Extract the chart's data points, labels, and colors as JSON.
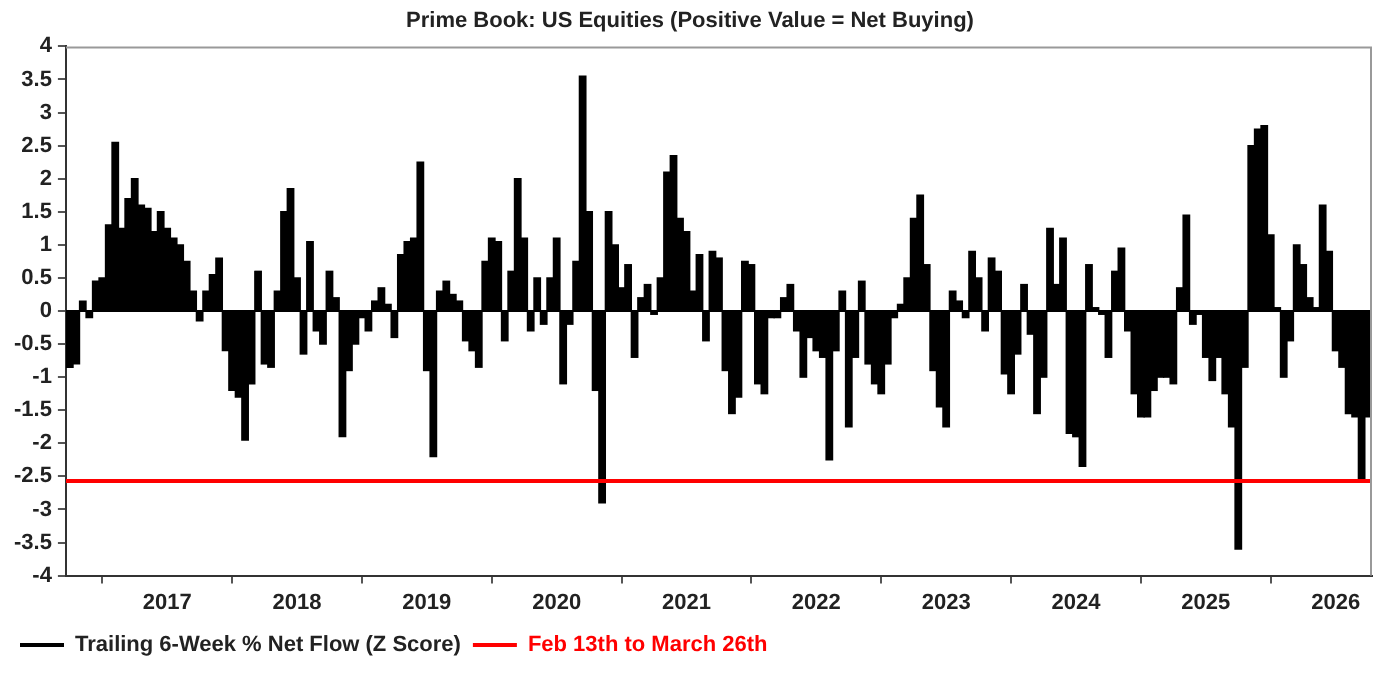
{
  "chart_data": {
    "type": "bar",
    "title": "Prime Book: US Equities (Positive Value = Net Buying)",
    "xlim": [
      2016.22,
      2026.28
    ],
    "xticks": [
      2017,
      2018,
      2019,
      2020,
      2021,
      2022,
      2023,
      2024,
      2025,
      2026
    ],
    "ylim": [
      -4,
      4
    ],
    "yticks": [
      -4,
      -3.5,
      -3,
      -2.5,
      -2,
      -1.5,
      -1,
      -0.5,
      0,
      0.5,
      1,
      1.5,
      2,
      2.5,
      3,
      3.5,
      4
    ],
    "grid": false,
    "legend": "bottom",
    "series": [
      {
        "name": "Trailing 6-Week % Net Flow (Z Score)",
        "color": "#000000",
        "x": [
          2016.25,
          2016.3,
          2016.35,
          2016.4,
          2016.45,
          2016.5,
          2016.55,
          2016.6,
          2016.65,
          2016.7,
          2016.75,
          2016.8,
          2016.85,
          2016.9,
          2016.95,
          2017,
          2017.05,
          2017.1,
          2017.15,
          2017.2,
          2017.25,
          2017.3,
          2017.35,
          2017.4,
          2017.45,
          2017.5,
          2017.55,
          2017.6,
          2017.65,
          2017.7,
          2017.75,
          2017.8,
          2017.85,
          2017.9,
          2017.95,
          2018,
          2018.05,
          2018.1,
          2018.15,
          2018.2,
          2018.25,
          2018.3,
          2018.35,
          2018.4,
          2018.45,
          2018.5,
          2018.55,
          2018.6,
          2018.65,
          2018.7,
          2018.75,
          2018.8,
          2018.85,
          2018.9,
          2018.95,
          2019,
          2019.05,
          2019.1,
          2019.15,
          2019.2,
          2019.25,
          2019.3,
          2019.35,
          2019.4,
          2019.45,
          2019.5,
          2019.55,
          2019.6,
          2019.65,
          2019.7,
          2019.75,
          2019.8,
          2019.85,
          2019.9,
          2019.95,
          2020,
          2020.05,
          2020.1,
          2020.15,
          2020.2,
          2020.25,
          2020.3,
          2020.35,
          2020.4,
          2020.45,
          2020.5,
          2020.55,
          2020.6,
          2020.65,
          2020.7,
          2020.75,
          2020.8,
          2020.85,
          2020.9,
          2020.95,
          2021,
          2021.05,
          2021.1,
          2021.15,
          2021.2,
          2021.25,
          2021.3,
          2021.35,
          2021.4,
          2021.45,
          2021.5,
          2021.55,
          2021.6,
          2021.65,
          2021.7,
          2021.75,
          2021.8,
          2021.85,
          2021.9,
          2021.95,
          2022,
          2022.05,
          2022.1,
          2022.15,
          2022.2,
          2022.25,
          2022.3,
          2022.35,
          2022.4,
          2022.45,
          2022.5,
          2022.55,
          2022.6,
          2022.65,
          2022.7,
          2022.75,
          2022.8,
          2022.85,
          2022.9,
          2022.95,
          2023,
          2023.05,
          2023.1,
          2023.15,
          2023.2,
          2023.25,
          2023.3,
          2023.35,
          2023.4,
          2023.45,
          2023.5,
          2023.55,
          2023.6,
          2023.65,
          2023.7,
          2023.75,
          2023.8,
          2023.85,
          2023.9,
          2023.95,
          2024,
          2024.05,
          2024.1,
          2024.15,
          2024.2,
          2024.25,
          2024.3,
          2024.35,
          2024.4,
          2024.45,
          2024.5,
          2024.55,
          2024.6,
          2024.65,
          2024.7,
          2024.75,
          2024.8,
          2024.85,
          2024.9,
          2024.95,
          2025,
          2025.05,
          2025.1,
          2025.15,
          2025.2,
          2025.25,
          2025.3,
          2025.35,
          2025.4,
          2025.45,
          2025.5,
          2025.55,
          2025.6,
          2025.65,
          2025.7,
          2025.75,
          2025.8,
          2025.85,
          2025.9,
          2025.95,
          2026,
          2026.05,
          2026.1,
          2026.15,
          2026.2,
          2026.25
        ],
        "values": [
          -0.85,
          -0.8,
          0.15,
          -0.1,
          0.45,
          0.5,
          1.3,
          2.55,
          1.25,
          1.7,
          2.0,
          1.6,
          1.55,
          1.2,
          1.5,
          1.25,
          1.1,
          1.0,
          0.75,
          0.3,
          -0.15,
          0.3,
          0.55,
          0.8,
          -0.6,
          -1.2,
          -1.3,
          -1.95,
          -1.1,
          0.6,
          -0.8,
          -0.85,
          0.3,
          1.5,
          1.85,
          0.5,
          -0.65,
          1.05,
          -0.3,
          -0.5,
          0.6,
          0.2,
          -1.9,
          -0.9,
          -0.5,
          -0.1,
          -0.3,
          0.15,
          0.35,
          0.1,
          -0.4,
          0.85,
          1.05,
          1.1,
          2.25,
          -0.9,
          -2.2,
          0.3,
          0.45,
          0.25,
          0.15,
          -0.45,
          -0.6,
          -0.85,
          0.75,
          1.1,
          1.05,
          -0.45,
          0.6,
          2.0,
          1.1,
          -0.3,
          0.5,
          -0.2,
          0.5,
          1.1,
          -1.1,
          -0.2,
          0.75,
          3.55,
          1.5,
          -1.2,
          -2.9,
          1.5,
          1.0,
          0.35,
          0.7,
          -0.7,
          0.2,
          0.4,
          -0.05,
          0.5,
          2.1,
          2.35,
          1.4,
          1.2,
          0.3,
          0.85,
          -0.45,
          0.9,
          0.8,
          -0.9,
          -1.55,
          -1.3,
          0.75,
          0.7,
          -1.1,
          -1.25,
          -0.1,
          -0.1,
          0.2,
          0.4,
          -0.3,
          -1.0,
          -0.4,
          -0.6,
          -0.7,
          -2.25,
          -0.6,
          0.3,
          -1.75,
          -0.7,
          0.45,
          -0.8,
          -1.1,
          -1.25,
          -0.8,
          -0.1,
          0.1,
          0.5,
          1.4,
          1.75,
          0.7,
          -0.9,
          -1.45,
          -1.75,
          0.3,
          0.15,
          -0.1,
          0.9,
          0.5,
          -0.3,
          0.8,
          0.6,
          -0.95,
          -1.25,
          -0.65,
          0.4,
          -0.35,
          -1.55,
          -1.0,
          1.25,
          0.4,
          1.1,
          -1.85,
          -1.9,
          -2.35,
          0.7,
          0.05,
          -0.05,
          -0.7,
          0.6,
          0.95,
          -0.3,
          -1.25,
          -1.6,
          -1.6,
          -1.2,
          -1.0,
          -1.0,
          -1.1,
          0.35,
          1.45,
          -0.2,
          -0.05,
          -0.7,
          -1.05,
          -0.7,
          -1.25,
          -1.75,
          -3.6,
          -0.85,
          2.5,
          2.75,
          2.8,
          1.15,
          0.05,
          -1.0,
          -0.45,
          1.0,
          0.7,
          0.2,
          0.05,
          1.6,
          0.9,
          -0.6,
          -0.85,
          -1.55,
          -1.6,
          -2.55,
          -1.6
        ]
      },
      {
        "name": "Feb 13th to March 26th",
        "type": "line",
        "color": "#ff0000",
        "x": [
          2016.22,
          2026.28
        ],
        "values": [
          -2.57,
          -2.57
        ]
      }
    ]
  }
}
